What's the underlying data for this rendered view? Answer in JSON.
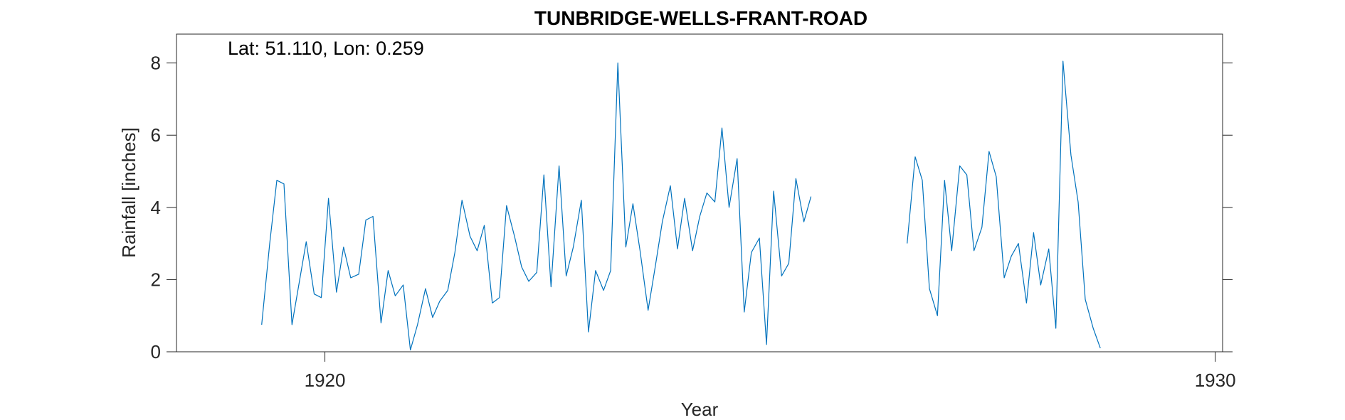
{
  "chart_data": {
    "type": "line",
    "title": "TUNBRIDGE-WELLS-FRANT-ROAD",
    "xlabel": "Year",
    "ylabel": "Rainfall [inches]",
    "annotation": "Lat: 51.110, Lon: 0.259",
    "xlim": [
      1918.333,
      1930.083
    ],
    "ylim": [
      0,
      8.8
    ],
    "x_ticks": [
      1920,
      1930
    ],
    "y_ticks": [
      0,
      2,
      4,
      6,
      8
    ],
    "grid": false,
    "legend": "none",
    "line_color": "#0072BD",
    "series": [
      {
        "x": [
          1919.29,
          1919.38,
          1919.46,
          1919.54,
          1919.63,
          1919.71,
          1919.79,
          1919.88,
          1919.96,
          1920.04,
          1920.13,
          1920.21,
          1920.29,
          1920.38,
          1920.46,
          1920.54,
          1920.63,
          1920.71,
          1920.79,
          1920.88,
          1920.96,
          1921.04,
          1921.13,
          1921.21,
          1921.29,
          1921.38,
          1921.46,
          1921.54,
          1921.63,
          1921.71,
          1921.79,
          1921.88,
          1921.96,
          1922.04,
          1922.13,
          1922.21,
          1922.29,
          1922.38,
          1922.46,
          1922.54,
          1922.63,
          1922.71,
          1922.79,
          1922.88,
          1922.96,
          1923.04,
          1923.13,
          1923.21,
          1923.29,
          1923.38,
          1923.46,
          1923.54,
          1923.63,
          1923.71,
          1923.79,
          1923.88,
          1923.96,
          1924.04,
          1924.13,
          1924.21,
          1924.29,
          1924.38,
          1924.46,
          1924.54,
          1924.63,
          1924.71,
          1924.79,
          1924.88,
          1924.96,
          1925.04,
          1925.13,
          1925.21,
          1925.29,
          1925.38,
          1925.46,
          1925.54,
          1925.63,
          1925.71,
          1925.79,
          1925.88,
          1925.96,
          1926.04,
          1926.13,
          1926.21,
          1926.29,
          1926.38,
          1926.46,
          1926.54,
          1926.63,
          1926.71,
          1926.79,
          1926.88,
          1926.96,
          1927.04,
          1927.13,
          1927.21,
          1927.29,
          1927.38,
          1927.46,
          1927.54,
          1927.63,
          1927.71,
          1927.79,
          1927.88,
          1927.96,
          1928.04,
          1928.13,
          1928.21,
          1928.29,
          1928.38,
          1928.46,
          1928.54,
          1928.63,
          1928.71
        ],
        "y": [
          0.75,
          3.0,
          4.75,
          4.65,
          0.75,
          1.9,
          3.05,
          1.6,
          1.5,
          4.25,
          1.65,
          2.9,
          2.05,
          2.15,
          3.65,
          3.75,
          0.8,
          2.25,
          1.55,
          1.85,
          0.05,
          0.75,
          1.75,
          0.95,
          1.4,
          1.7,
          2.75,
          4.2,
          3.2,
          2.8,
          3.5,
          1.35,
          1.5,
          4.05,
          3.2,
          2.35,
          1.95,
          2.2,
          4.9,
          1.8,
          5.15,
          2.1,
          2.9,
          4.2,
          0.55,
          2.25,
          1.7,
          2.25,
          8.0,
          2.9,
          4.1,
          2.8,
          1.15,
          2.35,
          3.6,
          4.6,
          2.85,
          4.25,
          2.8,
          3.75,
          4.4,
          4.15,
          6.2,
          4.0,
          5.35,
          1.1,
          2.75,
          3.15,
          0.2,
          4.45,
          2.1,
          2.45,
          4.8,
          3.6,
          4.3,
          null,
          null,
          null,
          null,
          null,
          null,
          null,
          null,
          null,
          null,
          null,
          null,
          3.0,
          5.4,
          4.75,
          1.75,
          1.0,
          4.75,
          2.8,
          5.15,
          4.9,
          2.8,
          3.45,
          5.55,
          4.85,
          2.05,
          2.65,
          3.0,
          1.35,
          3.3,
          1.85,
          2.85,
          0.65,
          8.05,
          5.45,
          4.15,
          1.45,
          0.65,
          0.1
        ]
      }
    ]
  }
}
